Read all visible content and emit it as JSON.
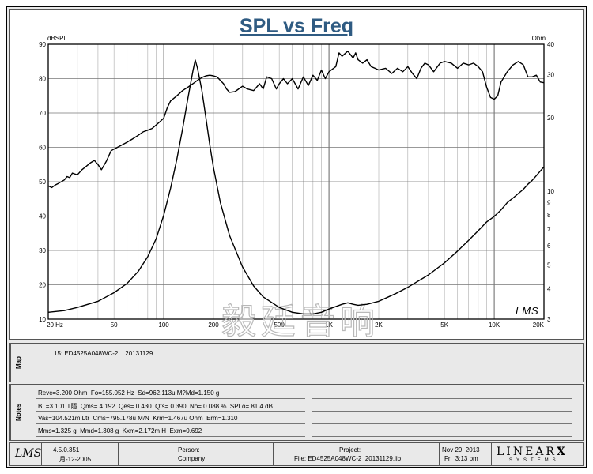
{
  "chart_data": {
    "type": "line",
    "title": "SPL vs Freq",
    "xlabel": "",
    "ylabel_left": "dBSPL",
    "ylabel_right": "Ohm",
    "x_scale": "log",
    "xlim": [
      20,
      20000
    ],
    "ylim_left": [
      10,
      90
    ],
    "ylim_right": [
      3,
      40
    ],
    "y_right_scale": "log",
    "grid": true,
    "x_ticks": [
      {
        "v": 20,
        "label": "20 Hz"
      },
      {
        "v": 50,
        "label": "50"
      },
      {
        "v": 100,
        "label": "100"
      },
      {
        "v": 200,
        "label": "200"
      },
      {
        "v": 500,
        "label": "500"
      },
      {
        "v": 1000,
        "label": "1K"
      },
      {
        "v": 2000,
        "label": "2K"
      },
      {
        "v": 5000,
        "label": "5K"
      },
      {
        "v": 10000,
        "label": "10K"
      },
      {
        "v": 20000,
        "label": "20K"
      }
    ],
    "y_left_ticks": [
      {
        "v": 10,
        "label": "10"
      },
      {
        "v": 20,
        "label": "20"
      },
      {
        "v": 30,
        "label": "30"
      },
      {
        "v": 40,
        "label": "40"
      },
      {
        "v": 50,
        "label": "50"
      },
      {
        "v": 60,
        "label": "60"
      },
      {
        "v": 70,
        "label": "70"
      },
      {
        "v": 80,
        "label": "80"
      },
      {
        "v": 90,
        "label": "90"
      }
    ],
    "y_right_ticks": [
      {
        "v": 3,
        "label": "3"
      },
      {
        "v": 4,
        "label": "4"
      },
      {
        "v": 5,
        "label": "5"
      },
      {
        "v": 6,
        "label": "6"
      },
      {
        "v": 7,
        "label": "7"
      },
      {
        "v": 8,
        "label": "8"
      },
      {
        "v": 9,
        "label": "9"
      },
      {
        "v": 10,
        "label": "10"
      },
      {
        "v": 20,
        "label": "20"
      },
      {
        "v": 30,
        "label": "30"
      },
      {
        "v": 40,
        "label": "40"
      }
    ],
    "series": [
      {
        "axis": "left",
        "color": "#000000",
        "points": [
          [
            20,
            48.8
          ],
          [
            21,
            48.3
          ],
          [
            22,
            49.0
          ],
          [
            23,
            49.5
          ],
          [
            25,
            50.5
          ],
          [
            26,
            51.5
          ],
          [
            27,
            51.2
          ],
          [
            28,
            52.5
          ],
          [
            30,
            52.0
          ],
          [
            32,
            53.5
          ],
          [
            34,
            54.5
          ],
          [
            36,
            55.5
          ],
          [
            38,
            56.2
          ],
          [
            40,
            55.0
          ],
          [
            42,
            53.5
          ],
          [
            45,
            56.0
          ],
          [
            48,
            59.0
          ],
          [
            50,
            59.5
          ],
          [
            55,
            60.5
          ],
          [
            60,
            61.5
          ],
          [
            65,
            62.5
          ],
          [
            70,
            63.5
          ],
          [
            75,
            64.5
          ],
          [
            80,
            65.0
          ],
          [
            85,
            65.5
          ],
          [
            90,
            66.5
          ],
          [
            95,
            67.5
          ],
          [
            100,
            68.5
          ],
          [
            105,
            71.5
          ],
          [
            110,
            73.5
          ],
          [
            120,
            75.0
          ],
          [
            130,
            76.5
          ],
          [
            140,
            77.5
          ],
          [
            150,
            78.5
          ],
          [
            160,
            79.5
          ],
          [
            170,
            80.3
          ],
          [
            180,
            80.8
          ],
          [
            190,
            81.0
          ],
          [
            200,
            80.8
          ],
          [
            210,
            80.5
          ],
          [
            220,
            79.5
          ],
          [
            230,
            78.5
          ],
          [
            240,
            77.0
          ],
          [
            250,
            76.0
          ],
          [
            270,
            76.2
          ],
          [
            300,
            77.8
          ],
          [
            320,
            77.0
          ],
          [
            350,
            76.5
          ],
          [
            380,
            78.5
          ],
          [
            400,
            77.0
          ],
          [
            420,
            80.5
          ],
          [
            450,
            80.0
          ],
          [
            480,
            77.0
          ],
          [
            500,
            78.5
          ],
          [
            530,
            80.0
          ],
          [
            560,
            78.5
          ],
          [
            600,
            80.0
          ],
          [
            650,
            77.0
          ],
          [
            700,
            80.5
          ],
          [
            750,
            78.0
          ],
          [
            800,
            81.0
          ],
          [
            850,
            79.5
          ],
          [
            900,
            82.5
          ],
          [
            950,
            80.0
          ],
          [
            1000,
            82.0
          ],
          [
            1100,
            83.5
          ],
          [
            1150,
            87.5
          ],
          [
            1200,
            86.5
          ],
          [
            1300,
            88.0
          ],
          [
            1400,
            86.0
          ],
          [
            1450,
            87.5
          ],
          [
            1500,
            85.5
          ],
          [
            1600,
            84.5
          ],
          [
            1700,
            85.5
          ],
          [
            1800,
            83.5
          ],
          [
            1900,
            83.0
          ],
          [
            2000,
            82.5
          ],
          [
            2200,
            83.0
          ],
          [
            2400,
            81.5
          ],
          [
            2600,
            83.0
          ],
          [
            2800,
            82.0
          ],
          [
            3000,
            83.5
          ],
          [
            3200,
            81.5
          ],
          [
            3400,
            80.0
          ],
          [
            3600,
            83.0
          ],
          [
            3800,
            84.5
          ],
          [
            4000,
            84.0
          ],
          [
            4300,
            82.0
          ],
          [
            4700,
            84.5
          ],
          [
            5000,
            85.0
          ],
          [
            5500,
            84.5
          ],
          [
            6000,
            83.0
          ],
          [
            6500,
            84.5
          ],
          [
            7000,
            84.0
          ],
          [
            7500,
            84.5
          ],
          [
            8000,
            83.5
          ],
          [
            8500,
            82.0
          ],
          [
            9000,
            77.5
          ],
          [
            9500,
            74.5
          ],
          [
            10000,
            74.0
          ],
          [
            10500,
            75.0
          ],
          [
            11000,
            79.0
          ],
          [
            12000,
            82.0
          ],
          [
            13000,
            84.0
          ],
          [
            14000,
            85.0
          ],
          [
            15000,
            84.0
          ],
          [
            16000,
            80.5
          ],
          [
            17000,
            80.5
          ],
          [
            18000,
            81.0
          ],
          [
            19000,
            79.0
          ],
          [
            20000,
            78.8
          ]
        ]
      },
      {
        "axis": "right",
        "color": "#000000",
        "points": [
          [
            20,
            3.2
          ],
          [
            25,
            3.25
          ],
          [
            30,
            3.35
          ],
          [
            40,
            3.55
          ],
          [
            50,
            3.85
          ],
          [
            60,
            4.2
          ],
          [
            70,
            4.7
          ],
          [
            80,
            5.4
          ],
          [
            90,
            6.4
          ],
          [
            100,
            8.0
          ],
          [
            110,
            10.3
          ],
          [
            120,
            13.5
          ],
          [
            130,
            18.0
          ],
          [
            140,
            24.0
          ],
          [
            150,
            31.0
          ],
          [
            155,
            34.5
          ],
          [
            160,
            32.0
          ],
          [
            170,
            26.0
          ],
          [
            180,
            20.0
          ],
          [
            190,
            15.5
          ],
          [
            200,
            12.5
          ],
          [
            220,
            9.0
          ],
          [
            250,
            6.6
          ],
          [
            300,
            4.9
          ],
          [
            350,
            4.1
          ],
          [
            400,
            3.7
          ],
          [
            500,
            3.35
          ],
          [
            600,
            3.2
          ],
          [
            700,
            3.15
          ],
          [
            800,
            3.15
          ],
          [
            900,
            3.2
          ],
          [
            1000,
            3.3
          ],
          [
            1200,
            3.45
          ],
          [
            1300,
            3.5
          ],
          [
            1400,
            3.45
          ],
          [
            1500,
            3.42
          ],
          [
            1700,
            3.45
          ],
          [
            2000,
            3.55
          ],
          [
            2500,
            3.8
          ],
          [
            3000,
            4.05
          ],
          [
            4000,
            4.55
          ],
          [
            5000,
            5.1
          ],
          [
            6000,
            5.7
          ],
          [
            7000,
            6.3
          ],
          [
            8000,
            6.9
          ],
          [
            9000,
            7.5
          ],
          [
            10000,
            7.9
          ],
          [
            11000,
            8.4
          ],
          [
            12000,
            9.0
          ],
          [
            13000,
            9.4
          ],
          [
            14000,
            9.8
          ],
          [
            15000,
            10.2
          ],
          [
            16000,
            10.7
          ],
          [
            17000,
            11.1
          ],
          [
            18000,
            11.6
          ],
          [
            19000,
            12.1
          ],
          [
            20000,
            12.6
          ]
        ]
      }
    ]
  },
  "plot": {
    "left_unit": "dBSPL",
    "right_unit": "Ohm",
    "lms_mark": "LMS",
    "watermark": "毅廷音响"
  },
  "map": {
    "label": "Map",
    "legend_entry": "15: ED4525A048WC-2    20131129"
  },
  "notes": {
    "label": "Notes",
    "lines": [
      "Revc=3.200 Ohm  Fo=155.052 Hz  Sd=962.113u M?Md=1.150 g",
      "BL=3.101 T隱  Qms= 4.192  Qes= 0.430  Qts= 0.390  No= 0.088 %  SPLo= 81.4 dB",
      "Vas=104.521m Ltr  Cms=795.178u M/N  Krm=1.467u Ohm  Erm=1.310",
      "Mms=1.325 g  Mmd=1.308 g  Kxm=2.172m H  Exm=0.692"
    ]
  },
  "footer": {
    "logo": "LMS",
    "version": "4.5.0.351",
    "version_date": "二月-12-2005",
    "person_label": "Person:",
    "company_label": "Company:",
    "project_label": "Project:",
    "file_line": "File: ED4525A048WC-2  20131129.lib",
    "date": "Nov 29, 2013",
    "time": "Fri  3:13 pm",
    "brand": "LINEAR",
    "brand_x": "X",
    "brand_sub": "SYSTEMS"
  }
}
